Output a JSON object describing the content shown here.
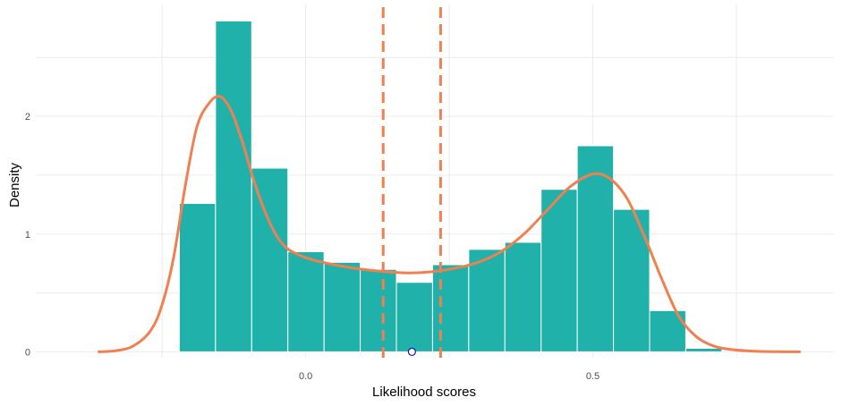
{
  "chart_data": {
    "type": "bar",
    "subtype": "histogram with density curve",
    "xlabel": "Likelihood scores",
    "ylabel": "Density",
    "xlim": [
      -0.47,
      0.92
    ],
    "ylim": [
      -0.05,
      2.95
    ],
    "x_ticks": [
      0.0,
      0.5
    ],
    "x_tick_labels": [
      "0.0",
      "0.5"
    ],
    "y_ticks": [
      0,
      1,
      2
    ],
    "y_tick_labels": [
      "0",
      "1",
      "2"
    ],
    "grid": true,
    "legend": "none",
    "colors": {
      "bars": "#20B2AA",
      "bar_outline": "#ffffff",
      "density_line": "#F08050",
      "vline": "#F08050",
      "point": "#1010C0",
      "grid": "#EBEBEB"
    },
    "histogram": {
      "bin_edges": [
        -0.22,
        -0.157,
        -0.094,
        -0.031,
        0.032,
        0.095,
        0.158,
        0.221,
        0.284,
        0.347,
        0.41,
        0.473,
        0.536,
        0.599,
        0.662,
        0.725
      ],
      "density": [
        1.26,
        2.81,
        1.56,
        0.85,
        0.76,
        0.7,
        0.59,
        0.74,
        0.87,
        0.93,
        1.38,
        1.75,
        1.21,
        0.35,
        0.03
      ]
    },
    "density_curve": {
      "x": [
        -0.36,
        -0.33,
        -0.3,
        -0.27,
        -0.25,
        -0.23,
        -0.21,
        -0.19,
        -0.17,
        -0.15,
        -0.13,
        -0.11,
        -0.09,
        -0.07,
        -0.05,
        -0.03,
        0.0,
        0.03,
        0.06,
        0.1,
        0.14,
        0.18,
        0.22,
        0.26,
        0.3,
        0.34,
        0.38,
        0.42,
        0.46,
        0.5,
        0.53,
        0.56,
        0.59,
        0.62,
        0.65,
        0.68,
        0.71,
        0.74,
        0.78,
        0.82,
        0.86
      ],
      "y": [
        0.0,
        0.01,
        0.05,
        0.18,
        0.4,
        0.8,
        1.4,
        1.9,
        2.1,
        2.17,
        2.05,
        1.78,
        1.45,
        1.18,
        0.98,
        0.87,
        0.8,
        0.76,
        0.73,
        0.7,
        0.68,
        0.67,
        0.68,
        0.71,
        0.76,
        0.85,
        1.0,
        1.2,
        1.4,
        1.51,
        1.47,
        1.3,
        0.98,
        0.62,
        0.3,
        0.13,
        0.05,
        0.02,
        0.005,
        0.001,
        0.0
      ]
    },
    "vlines": [
      0.135,
      0.235
    ],
    "points": [
      {
        "x": 0.185,
        "y": 0.0
      }
    ]
  }
}
